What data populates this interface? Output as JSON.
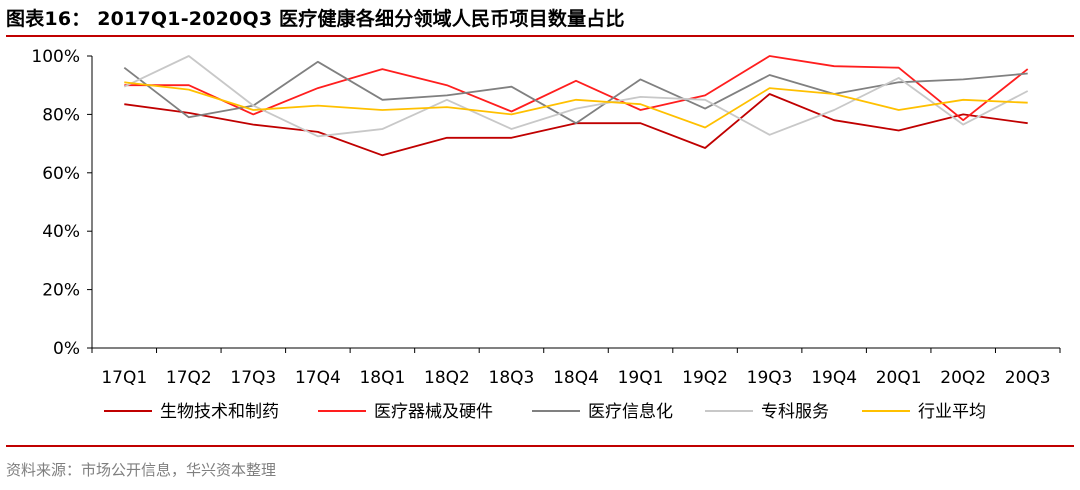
{
  "header": {
    "title": "图表16： 2017Q1-2020Q3 医疗健康各细分领域人民币项目数量占比"
  },
  "footer": {
    "source": "资料来源：市场公开信息，华兴资本整理"
  },
  "colors": {
    "rule": "#c00000"
  },
  "chart_data": {
    "type": "line",
    "title": "图表16： 2017Q1-2020Q3 医疗健康各细分领域人民币项目数量占比",
    "xlabel": "",
    "ylabel": "",
    "x": [
      "17Q1",
      "17Q2",
      "17Q3",
      "17Q4",
      "18Q1",
      "18Q2",
      "18Q3",
      "18Q4",
      "19Q1",
      "19Q2",
      "19Q3",
      "19Q4",
      "20Q1",
      "20Q2",
      "20Q3"
    ],
    "ylim": [
      0,
      100
    ],
    "yticks": [
      "0%",
      "20%",
      "40%",
      "60%",
      "80%",
      "100%"
    ],
    "ytick_values": [
      0,
      20,
      40,
      60,
      80,
      100
    ],
    "grid": false,
    "legend_position": "bottom",
    "series": [
      {
        "name": "生物技术和制药",
        "color": "#c00000",
        "values": [
          83.5,
          80.5,
          76.5,
          74,
          66,
          72,
          72,
          77,
          77,
          68.5,
          87,
          78,
          74.5,
          80,
          77
        ]
      },
      {
        "name": "医疗器械及硬件",
        "color": "#ff1e1e",
        "values": [
          90,
          90,
          80,
          89,
          95.5,
          90,
          81,
          91.5,
          81.5,
          86.5,
          100,
          96.5,
          96,
          78,
          95.5
        ]
      },
      {
        "name": "医疗信息化",
        "color": "#808080",
        "values": [
          96,
          79,
          83,
          98,
          85,
          86.5,
          89.5,
          77,
          92,
          82,
          93.5,
          87,
          91,
          92,
          94
        ]
      },
      {
        "name": "专科服务",
        "color": "#c8c8c8",
        "values": [
          89.5,
          100,
          83,
          72.5,
          75,
          85,
          75,
          82,
          86,
          85,
          73,
          81.5,
          92.5,
          76.5,
          88
        ]
      },
      {
        "name": "行业平均",
        "color": "#ffc000",
        "values": [
          91,
          88.5,
          81.5,
          83,
          81.5,
          82.5,
          80,
          85,
          83.5,
          75.5,
          89,
          87,
          81.5,
          85,
          84
        ]
      }
    ]
  }
}
